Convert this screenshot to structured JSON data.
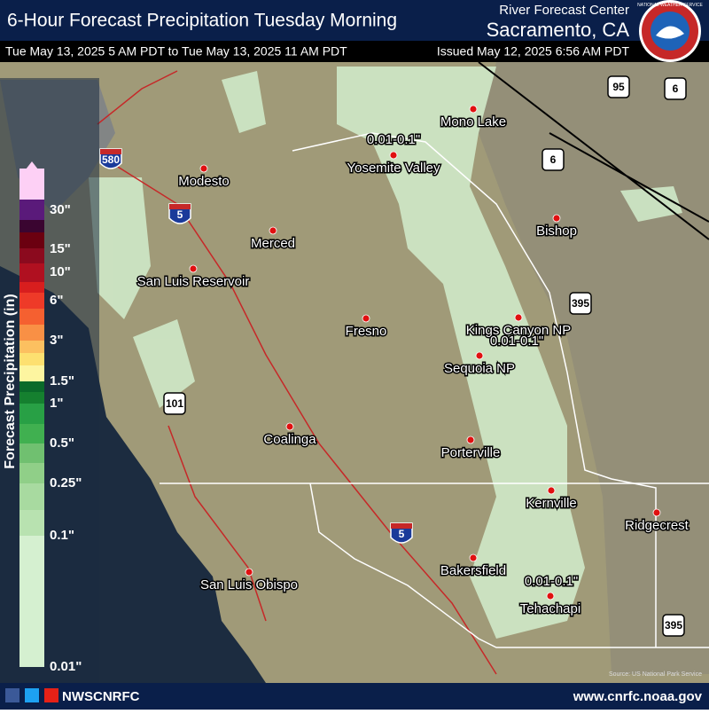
{
  "header": {
    "title": "6-Hour Forecast Precipitation Tuesday Morning",
    "office_line1": "River Forecast Center",
    "office_line2": "Sacramento, CA",
    "valid_period": "Tue May 13, 2025 5 AM PDT to Tue May 13, 2025 11 AM PDT",
    "issued": "Issued May 12, 2025 6:56 AM PDT",
    "logo_text": "NATIONAL WEATHER SERVICE"
  },
  "legend": {
    "title": "Forecast Precipitation (in)",
    "labels": [
      "30\"",
      "15\"",
      "10\"",
      "6\"",
      "3\"",
      "1.5\"",
      "1\"",
      "0.5\"",
      "0.25\"",
      "0.1\"",
      "0.01\""
    ]
  },
  "map": {
    "places": [
      "Mono Lake",
      "Yosemite Valley",
      "Modesto",
      "Merced",
      "San Luis Reservoir",
      "Bishop",
      "Fresno",
      "Kings Canyon NP",
      "Sequoia NP",
      "Coalinga",
      "Porterville",
      "Kernville",
      "Ridgecrest",
      "Bakersfield",
      "San Luis Obispo",
      "Tehachapi"
    ],
    "precip_labels": [
      "0.01-0.1\"",
      "0.01-0.1\"",
      "0.01-0.1\""
    ],
    "highways": [
      "580",
      "5",
      "5",
      "101",
      "395",
      "395",
      "95",
      "6",
      "6"
    ],
    "source": "Source: US National Park Service"
  },
  "footer": {
    "handle": "NWSCNRFC",
    "url": "www.cnrfc.noaa.gov"
  }
}
